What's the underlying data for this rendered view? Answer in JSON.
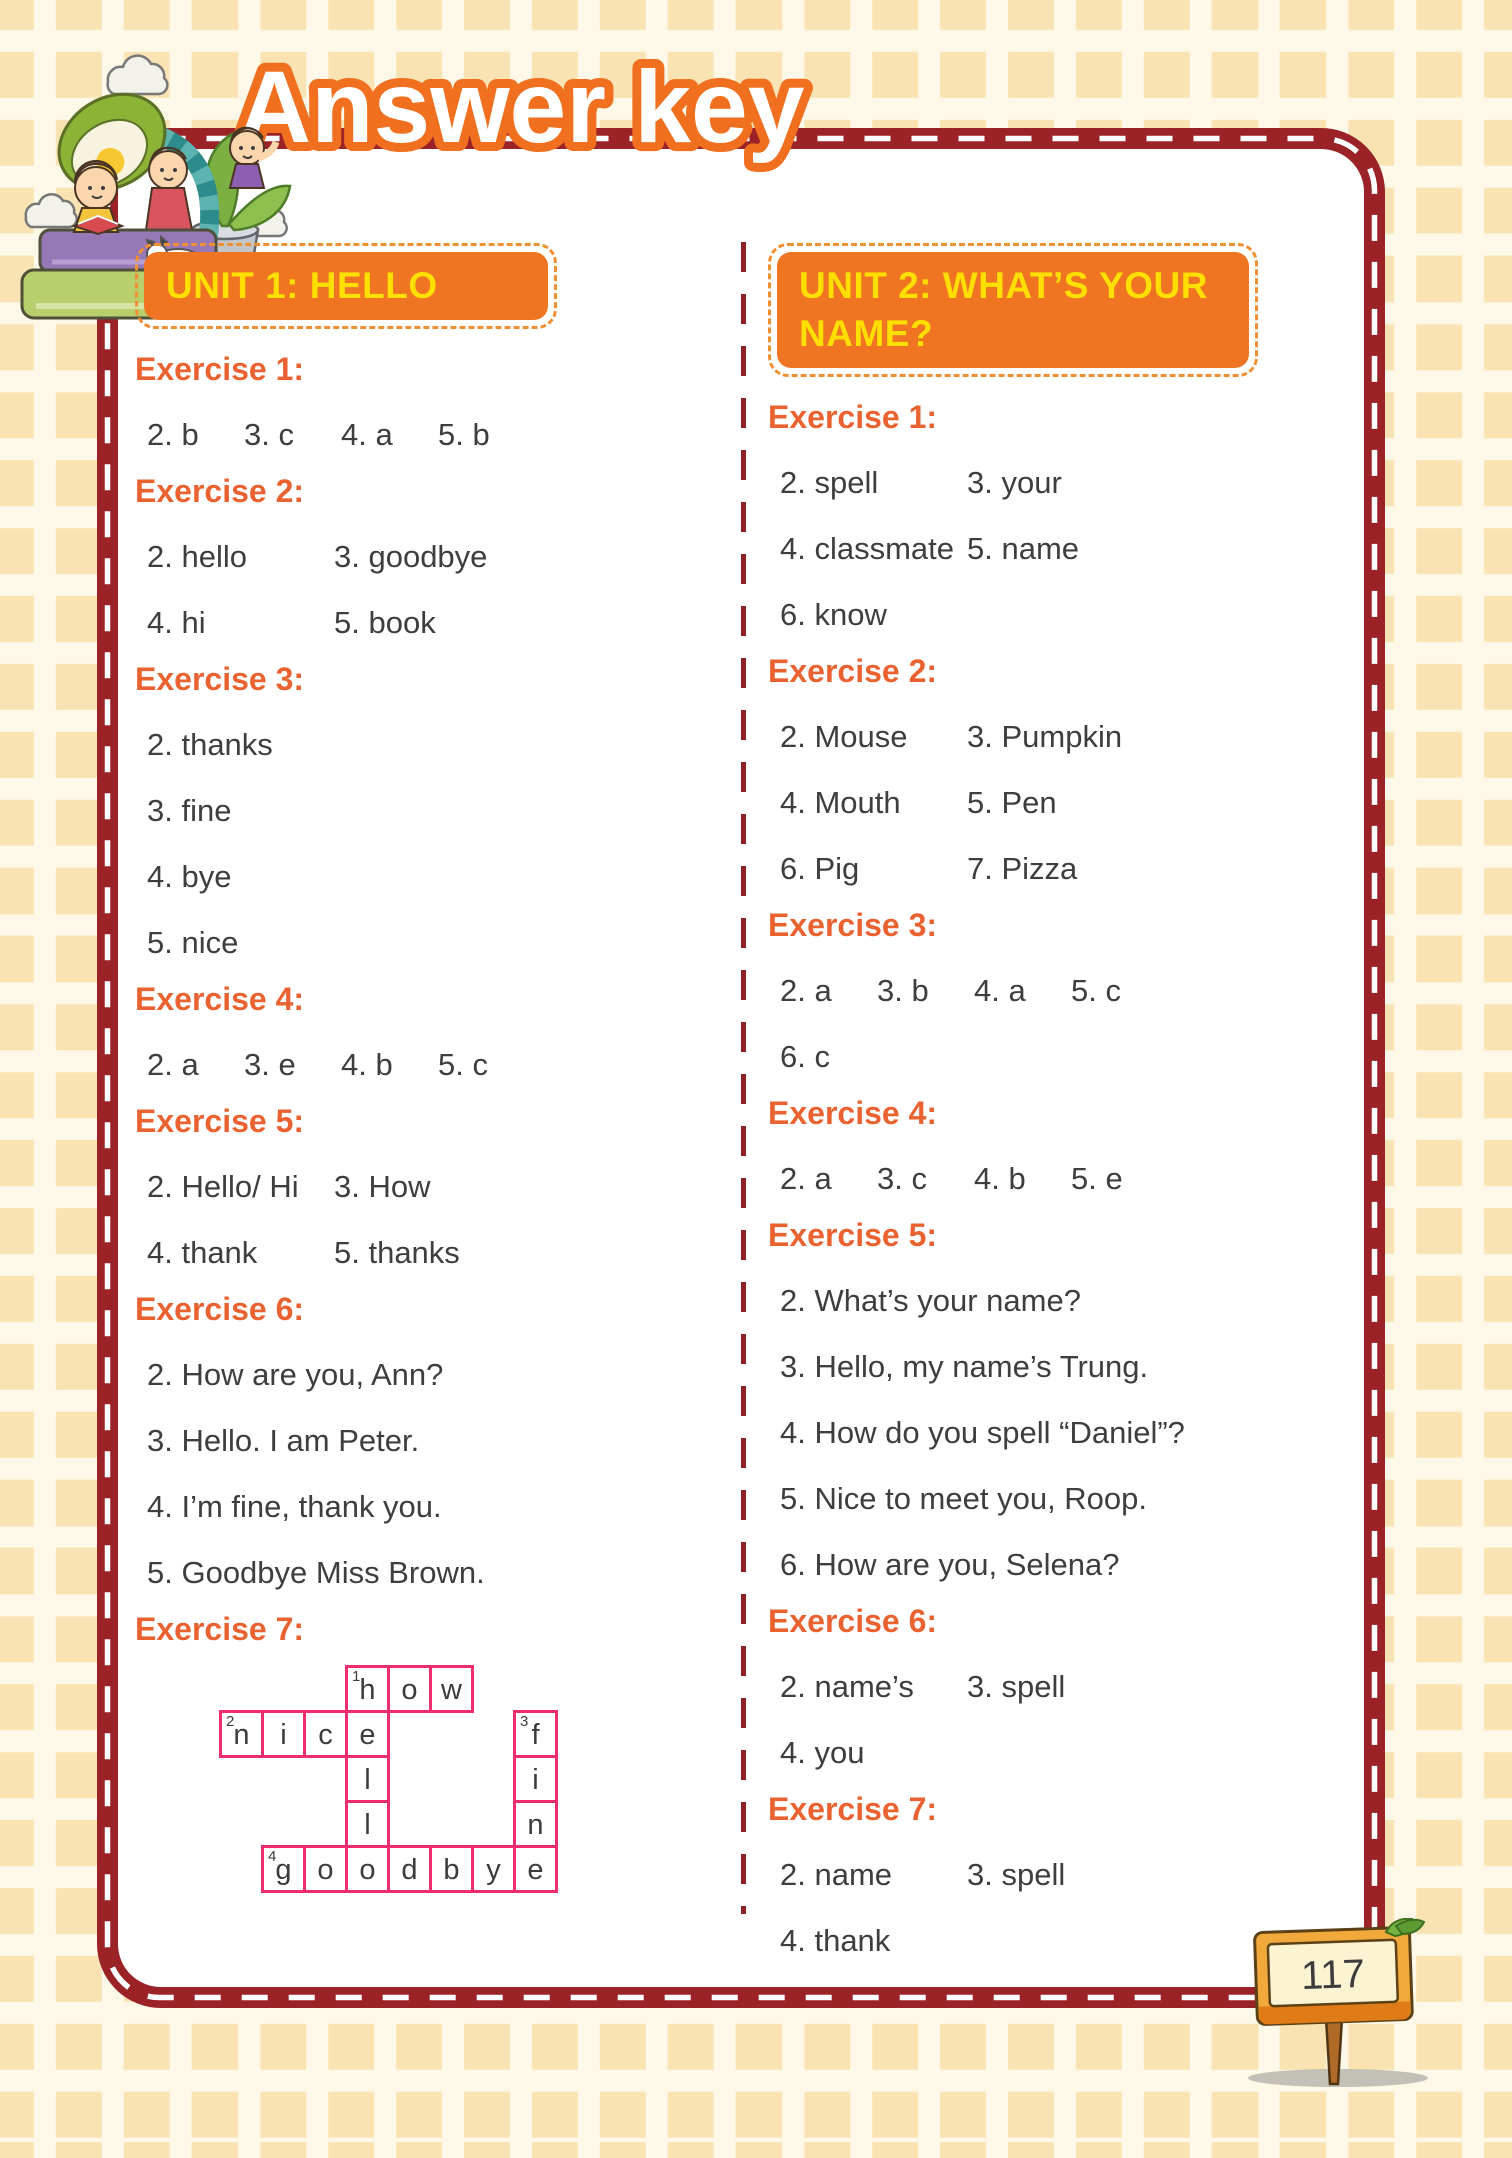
{
  "page": {
    "title": "Answer key",
    "page_number": "117"
  },
  "colors": {
    "accent_orange": "#ef7522",
    "heading_orange": "#eb6231",
    "unit_text_yellow": "#ffdf00",
    "border_red": "#9b2227",
    "crossword_pink": "#ed2d6e",
    "body_text": "#3e3e3e",
    "background_cream": "#fdf8e7",
    "checker_square": "#f9e3b2"
  },
  "units": [
    {
      "title": "UNIT 1: HELLO",
      "exercises": [
        {
          "label": "Exercise 1:",
          "rows": [
            {
              "type": "grid4",
              "items": [
                "2. b",
                "3. c",
                "4. a",
                "5. b"
              ]
            }
          ]
        },
        {
          "label": "Exercise 2:",
          "rows": [
            {
              "type": "grid2",
              "items": [
                "2. hello",
                "3. goodbye"
              ]
            },
            {
              "type": "grid2",
              "items": [
                "4. hi",
                "5. book"
              ]
            }
          ]
        },
        {
          "label": "Exercise 3:",
          "rows": [
            {
              "type": "list",
              "items": [
                "2. thanks",
                "3. fine",
                "4. bye",
                "5. nice"
              ]
            }
          ]
        },
        {
          "label": "Exercise 4:",
          "rows": [
            {
              "type": "grid4",
              "items": [
                "2. a",
                "3. e",
                "4. b",
                "5. c"
              ]
            }
          ]
        },
        {
          "label": "Exercise 5:",
          "rows": [
            {
              "type": "grid2",
              "items": [
                "2. Hello/ Hi",
                "3. How"
              ]
            },
            {
              "type": "grid2",
              "items": [
                "4. thank",
                "5. thanks"
              ]
            }
          ]
        },
        {
          "label": "Exercise 6:",
          "rows": [
            {
              "type": "list",
              "items": [
                "2. How are you, Ann?",
                "3. Hello. I am Peter.",
                "4. I’m fine, thank you.",
                "5. Goodbye Miss Brown."
              ]
            }
          ]
        },
        {
          "label": "Exercise 7:",
          "rows": [
            {
              "type": "crossword"
            }
          ]
        }
      ]
    },
    {
      "title": "UNIT 2: WHAT’S YOUR NAME?",
      "exercises": [
        {
          "label": "Exercise 1:",
          "rows": [
            {
              "type": "grid2",
              "items": [
                "2. spell",
                "3. your"
              ]
            },
            {
              "type": "grid2",
              "items": [
                "4. classmate",
                "5. name"
              ]
            },
            {
              "type": "grid2",
              "items": [
                "6. know"
              ]
            }
          ]
        },
        {
          "label": "Exercise 2:",
          "rows": [
            {
              "type": "grid2",
              "items": [
                "2. Mouse",
                "3. Pumpkin"
              ]
            },
            {
              "type": "grid2",
              "items": [
                "4. Mouth",
                "5. Pen"
              ]
            },
            {
              "type": "grid2",
              "items": [
                "6. Pig",
                "7. Pizza"
              ]
            }
          ]
        },
        {
          "label": "Exercise 3:",
          "rows": [
            {
              "type": "grid4",
              "items": [
                "2. a",
                "3. b",
                "4. a",
                "5. c"
              ]
            },
            {
              "type": "grid4",
              "items": [
                "6. c"
              ]
            }
          ]
        },
        {
          "label": "Exercise 4:",
          "rows": [
            {
              "type": "grid4",
              "items": [
                "2. a",
                "3. c",
                "4. b",
                "5. e"
              ]
            }
          ]
        },
        {
          "label": "Exercise 5:",
          "rows": [
            {
              "type": "list",
              "items": [
                "2. What’s your name?",
                "3. Hello, my name’s Trung.",
                "4. How do you spell “Daniel”?",
                "5. Nice to meet you, Roop.",
                "6. How are you, Selena?"
              ]
            }
          ]
        },
        {
          "label": "Exercise 6:",
          "rows": [
            {
              "type": "grid2",
              "items": [
                "2. name’s",
                "3. spell"
              ]
            },
            {
              "type": "grid2",
              "items": [
                "4. you"
              ]
            }
          ]
        },
        {
          "label": "Exercise 7:",
          "rows": [
            {
              "type": "grid2",
              "items": [
                "2. name",
                "3. spell"
              ]
            },
            {
              "type": "grid2",
              "items": [
                "4. thank"
              ]
            }
          ]
        }
      ]
    }
  ],
  "crossword": {
    "cols": 8,
    "rows": 5,
    "across_words": [
      "how",
      "nice",
      "goodbye"
    ],
    "down_words": [
      "hello",
      "fine"
    ],
    "cells": [
      {
        "r": 1,
        "c": 4,
        "letter": "h",
        "num": "1"
      },
      {
        "r": 1,
        "c": 5,
        "letter": "o"
      },
      {
        "r": 1,
        "c": 6,
        "letter": "w"
      },
      {
        "r": 2,
        "c": 1,
        "letter": "n",
        "num": "2"
      },
      {
        "r": 2,
        "c": 2,
        "letter": "i"
      },
      {
        "r": 2,
        "c": 3,
        "letter": "c"
      },
      {
        "r": 2,
        "c": 4,
        "letter": "e"
      },
      {
        "r": 2,
        "c": 8,
        "letter": "f",
        "num": "3"
      },
      {
        "r": 3,
        "c": 4,
        "letter": "l"
      },
      {
        "r": 3,
        "c": 8,
        "letter": "i"
      },
      {
        "r": 4,
        "c": 4,
        "letter": "l"
      },
      {
        "r": 4,
        "c": 8,
        "letter": "n"
      },
      {
        "r": 5,
        "c": 2,
        "letter": "g",
        "num": "4"
      },
      {
        "r": 5,
        "c": 3,
        "letter": "o"
      },
      {
        "r": 5,
        "c": 4,
        "letter": "o"
      },
      {
        "r": 5,
        "c": 5,
        "letter": "d"
      },
      {
        "r": 5,
        "c": 6,
        "letter": "b"
      },
      {
        "r": 5,
        "c": 7,
        "letter": "y"
      },
      {
        "r": 5,
        "c": 8,
        "letter": "e"
      }
    ]
  }
}
